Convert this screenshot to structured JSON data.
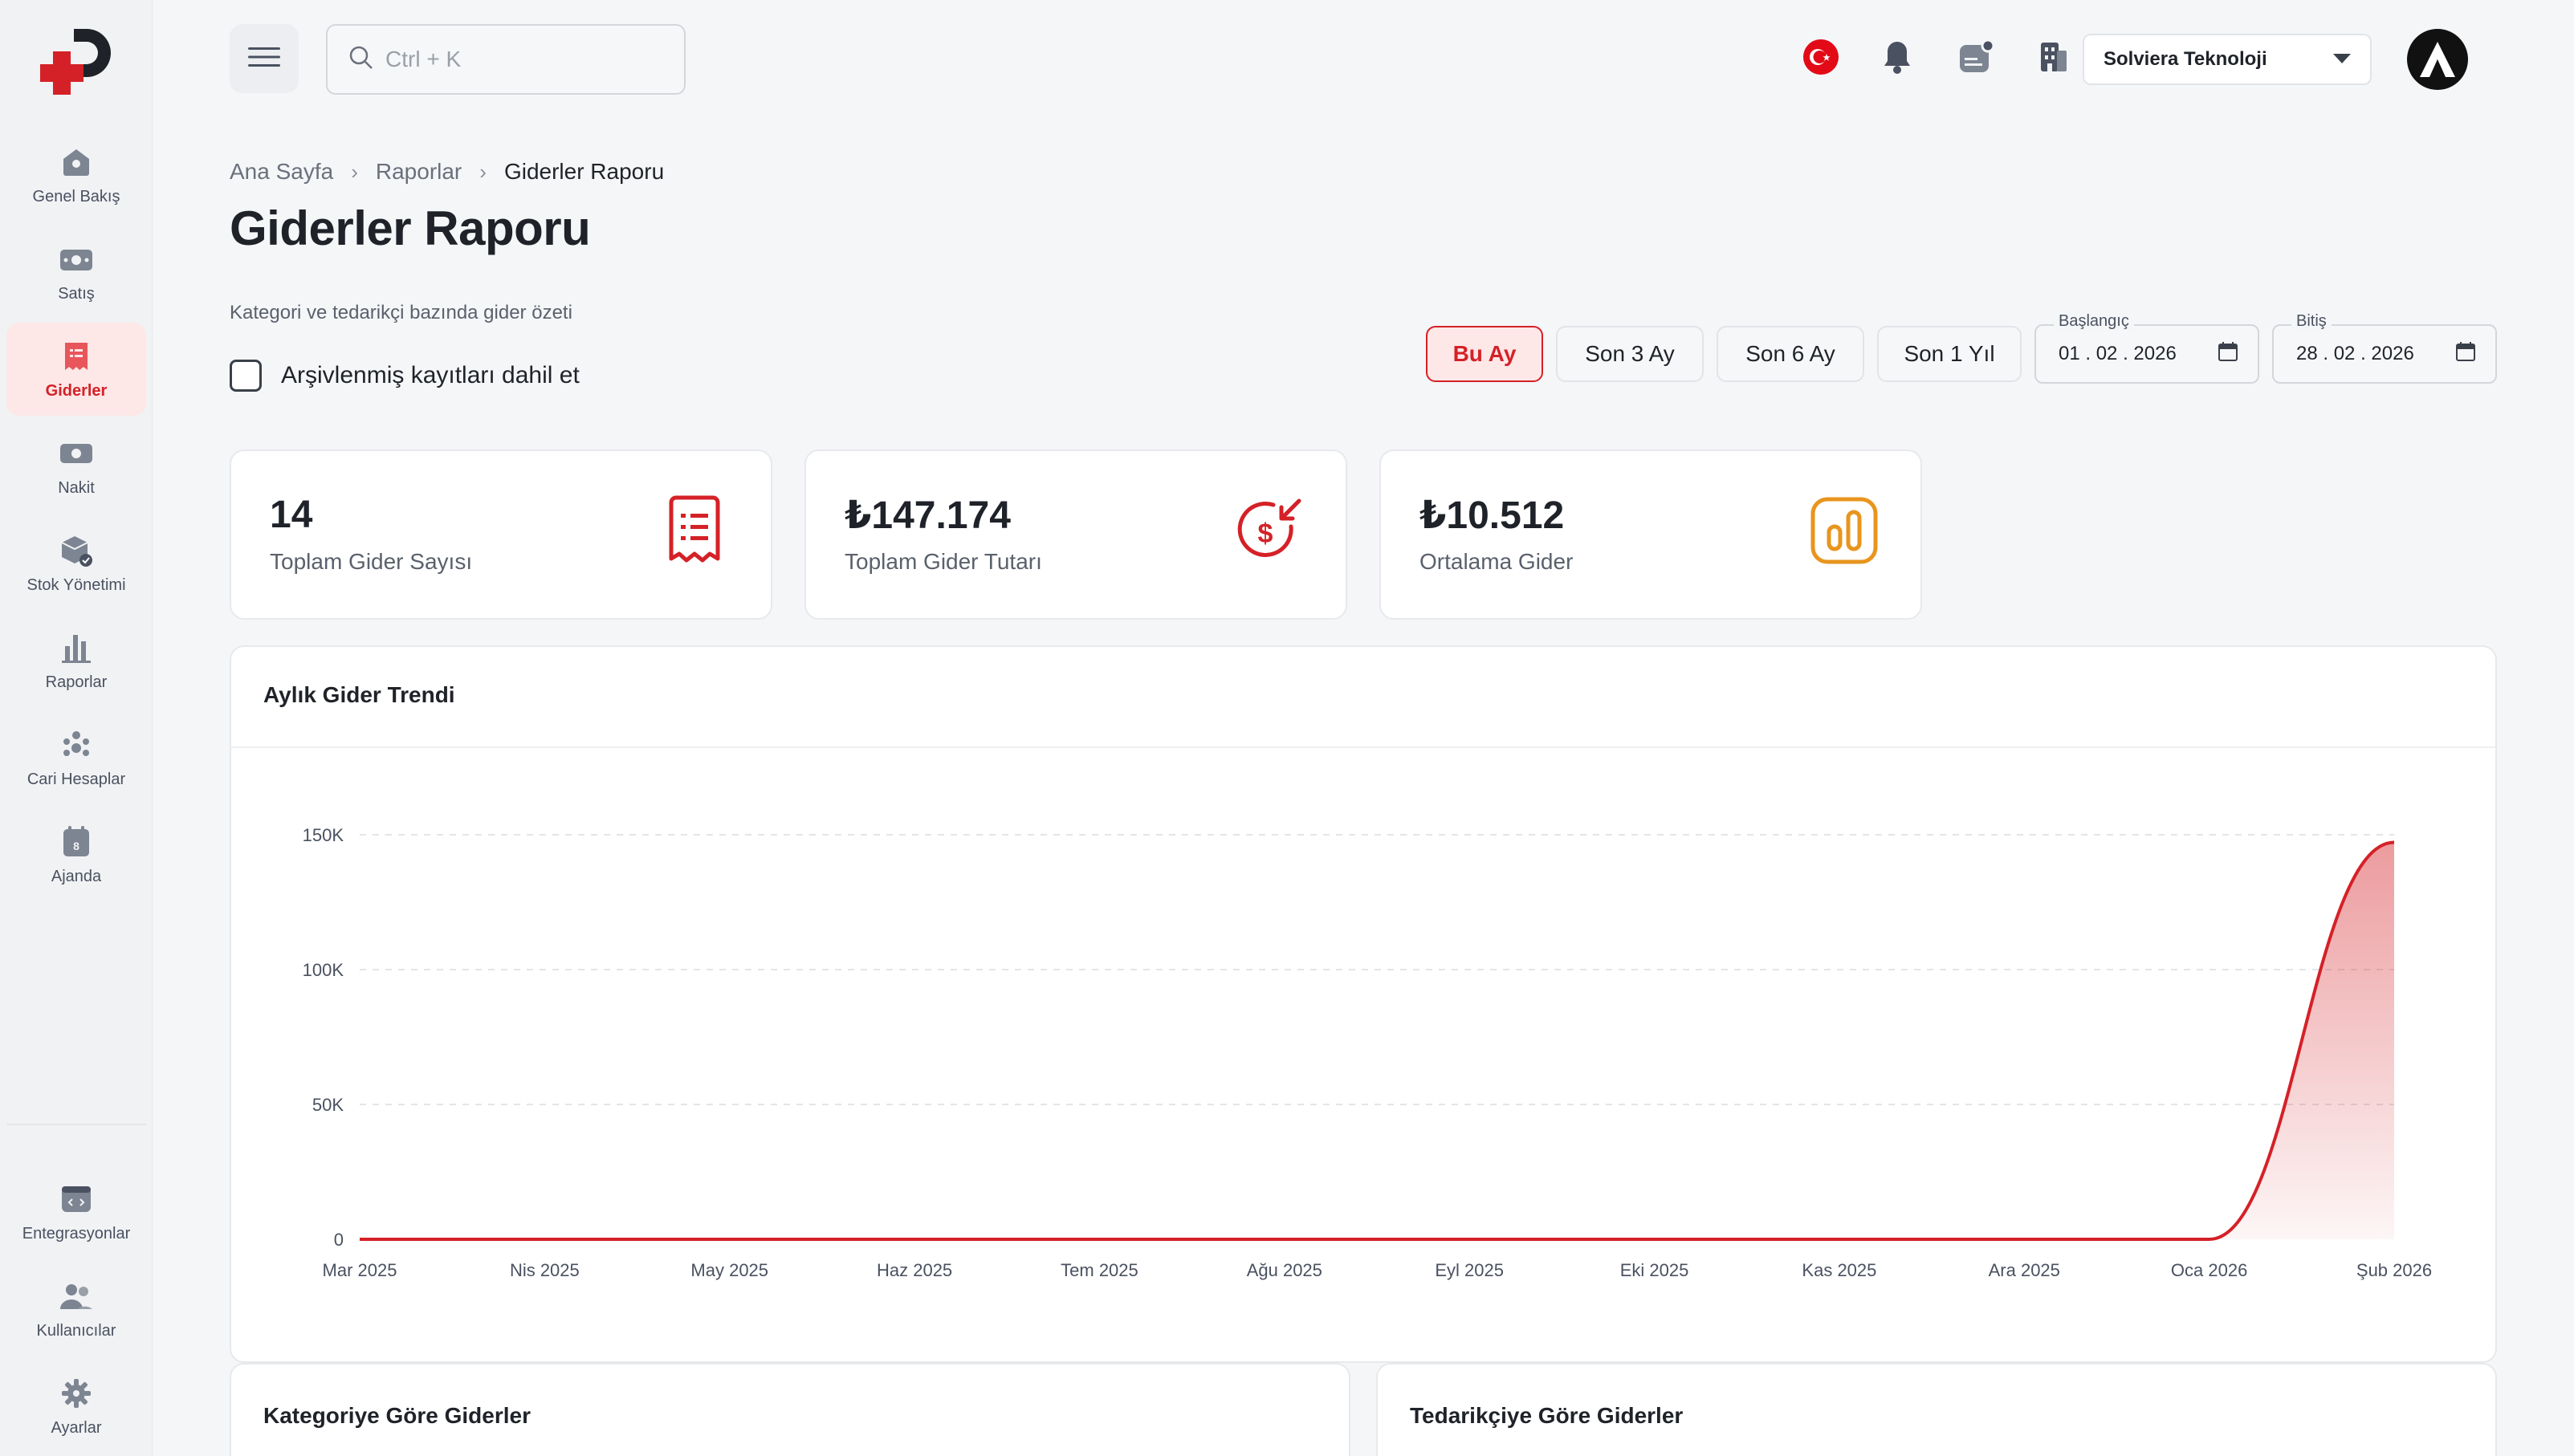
{
  "app": {
    "brand_color": "#d42127"
  },
  "sidebar": {
    "items": [
      {
        "label": "Genel Bakış",
        "icon": "home-icon",
        "active": false
      },
      {
        "label": "Satış",
        "icon": "cash-icon",
        "active": false
      },
      {
        "label": "Giderler",
        "icon": "receipt-icon",
        "active": true
      },
      {
        "label": "Nakit",
        "icon": "money-icon",
        "active": false
      },
      {
        "label": "Stok Yönetimi",
        "icon": "box-icon",
        "active": false
      },
      {
        "label": "Raporlar",
        "icon": "bar-chart-icon",
        "active": false
      },
      {
        "label": "Cari Hesaplar",
        "icon": "people-icon",
        "active": false
      },
      {
        "label": "Ajanda",
        "icon": "calendar-icon",
        "active": false
      }
    ],
    "bottom_items": [
      {
        "label": "Entegrasyonlar",
        "icon": "integration-icon"
      },
      {
        "label": "Kullanıcılar",
        "icon": "users-icon"
      },
      {
        "label": "Ayarlar",
        "icon": "gear-icon"
      }
    ]
  },
  "topbar": {
    "search_placeholder": "Ctrl + K",
    "company": "Solviera Teknoloji"
  },
  "breadcrumb": [
    "Ana Sayfa",
    "Raporlar",
    "Giderler Raporu"
  ],
  "page": {
    "title": "Giderler Raporu",
    "subtitle": "Kategori ve tedarikçi bazında gider özeti",
    "archive_label": "Arşivlenmiş kayıtları dahil et",
    "archive_checked": false
  },
  "periods": [
    {
      "label": "Bu Ay",
      "active": true
    },
    {
      "label": "Son 3 Ay",
      "active": false
    },
    {
      "label": "Son 6 Ay",
      "active": false
    },
    {
      "label": "Son 1 Yıl",
      "active": false
    }
  ],
  "dates": {
    "start_label": "Başlangıç",
    "start_value": "01 . 02 . 2026",
    "end_label": "Bitiş",
    "end_value": "28 . 02 . 2026"
  },
  "stats": [
    {
      "value": "14",
      "label": "Toplam Gider Sayısı",
      "icon": "receipt-icon",
      "color": "#d42127"
    },
    {
      "value": "₺147.174",
      "label": "Toplam Gider Tutarı",
      "icon": "dollar-arrow-icon",
      "color": "#d42127"
    },
    {
      "value": "₺10.512",
      "label": "Ortalama Gider",
      "icon": "stats-icon",
      "color": "#e8951e"
    }
  ],
  "chart_title": "Aylık Gider Trendi",
  "chart_data": {
    "type": "area",
    "categories": [
      "Mar 2025",
      "Nis 2025",
      "May 2025",
      "Haz 2025",
      "Tem 2025",
      "Ağu 2025",
      "Eyl 2025",
      "Eki 2025",
      "Kas 2025",
      "Ara 2025",
      "Oca 2026",
      "Şub 2026"
    ],
    "series": [
      {
        "values": [
          0,
          0,
          0,
          0,
          0,
          0,
          0,
          0,
          0,
          0,
          0,
          147174
        ]
      }
    ],
    "yticks": [
      "0",
      "50K",
      "100K",
      "150K"
    ],
    "ylim": [
      0,
      150000
    ],
    "grid": true,
    "color": "#d42127"
  },
  "bottom_cards": [
    {
      "title": "Kategoriye Göre Giderler"
    },
    {
      "title": "Tedarikçiye Göre Giderler"
    }
  ]
}
